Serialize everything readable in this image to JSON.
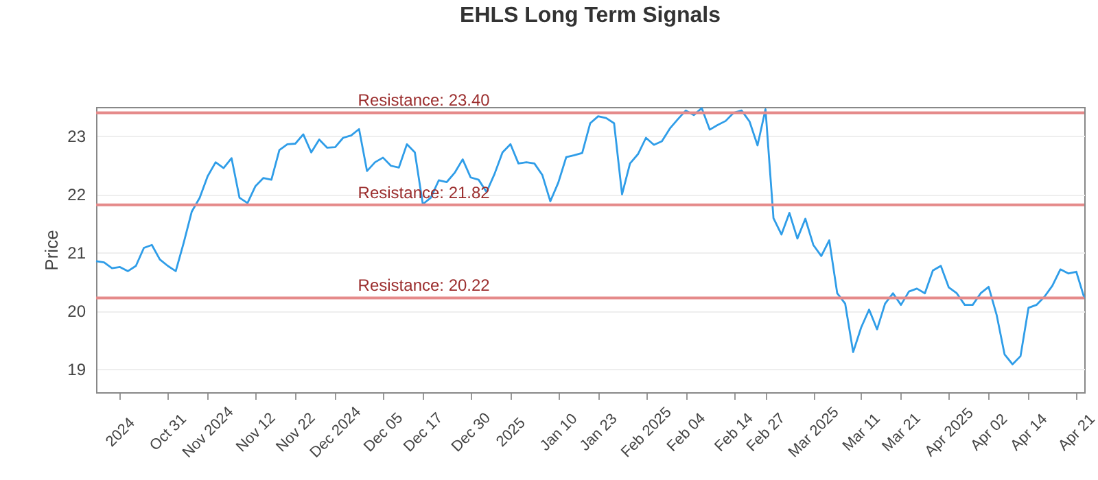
{
  "chart_data": {
    "type": "line",
    "title": "EHLS Long Term Signals",
    "ylabel": "Price",
    "categories": [
      null,
      null,
      null,
      "2024",
      null,
      null,
      null,
      null,
      null,
      "Oct 31",
      null,
      null,
      null,
      null,
      "Nov 2024",
      null,
      null,
      null,
      null,
      null,
      "Nov 12",
      null,
      null,
      null,
      null,
      "Nov 22",
      null,
      null,
      null,
      null,
      "Dec 2024",
      null,
      null,
      null,
      null,
      null,
      "Dec 05",
      null,
      null,
      null,
      null,
      "Dec 17",
      null,
      null,
      null,
      null,
      null,
      "Dec 30",
      null,
      null,
      null,
      null,
      "2025",
      null,
      null,
      null,
      null,
      null,
      "Jan 10",
      null,
      null,
      null,
      null,
      "Jan 23",
      null,
      null,
      null,
      null,
      null,
      "Feb 2025",
      null,
      null,
      null,
      null,
      "Feb 04",
      null,
      null,
      null,
      null,
      null,
      "Feb 14",
      null,
      null,
      null,
      "Feb 27",
      null,
      null,
      null,
      null,
      null,
      "Mar 2025",
      null,
      null,
      null,
      null,
      null,
      "Mar 11",
      null,
      null,
      null,
      null,
      "Mar 21",
      null,
      null,
      null,
      null,
      null,
      "Apr 2025",
      null,
      null,
      null,
      null,
      "Apr 02",
      null,
      null,
      null,
      null,
      "Apr 14",
      null,
      null,
      null,
      null,
      null,
      "Apr 21",
      null
    ],
    "series": [
      {
        "color": "#2f9de8",
        "values": [
          20.85,
          20.83,
          20.73,
          20.75,
          20.68,
          20.77,
          21.08,
          21.13,
          20.88,
          20.77,
          20.68,
          21.17,
          21.7,
          21.94,
          22.31,
          22.55,
          22.45,
          22.62,
          21.94,
          21.85,
          22.14,
          22.28,
          22.25,
          22.76,
          22.86,
          22.87,
          23.03,
          22.72,
          22.94,
          22.8,
          22.81,
          22.97,
          23.01,
          23.12,
          22.4,
          22.55,
          22.63,
          22.49,
          22.46,
          22.86,
          22.72,
          21.83,
          21.94,
          22.24,
          22.21,
          22.37,
          22.6,
          22.29,
          22.25,
          22.04,
          22.35,
          22.72,
          22.86,
          22.53,
          22.55,
          22.53,
          22.33,
          21.88,
          22.2,
          22.64,
          22.67,
          22.71,
          23.22,
          23.34,
          23.31,
          23.22,
          22.0,
          22.53,
          22.69,
          22.97,
          22.85,
          22.91,
          23.13,
          23.29,
          23.44,
          23.36,
          23.48,
          23.11,
          23.19,
          23.26,
          23.4,
          23.44,
          23.25,
          22.84,
          23.46,
          21.59,
          21.31,
          21.68,
          21.24,
          21.58,
          21.13,
          20.94,
          21.21,
          20.3,
          20.12,
          19.29,
          19.71,
          20.02,
          19.68,
          20.12,
          20.3,
          20.1,
          20.33,
          20.38,
          20.3,
          20.69,
          20.77,
          20.4,
          20.3,
          20.1,
          20.1,
          20.3,
          20.41,
          19.93,
          19.25,
          19.08,
          19.22,
          20.05,
          20.1,
          20.24,
          20.43,
          20.71,
          20.64,
          20.67,
          20.22
        ]
      }
    ],
    "ylim": [
      18.6,
      23.5
    ],
    "yticks": [
      19,
      20,
      21,
      22,
      23
    ],
    "grid": "y",
    "marker": "none",
    "line_style": "solid",
    "ref_lines": [
      {
        "axis": "y",
        "value": 23.4,
        "label": "Resistance: 23.40",
        "color": "#e58a8a"
      },
      {
        "axis": "y",
        "value": 21.82,
        "label": "Resistance: 21.82",
        "color": "#e58a8a"
      },
      {
        "axis": "y",
        "value": 20.22,
        "label": "Resistance: 20.22",
        "color": "#e58a8a"
      }
    ]
  }
}
